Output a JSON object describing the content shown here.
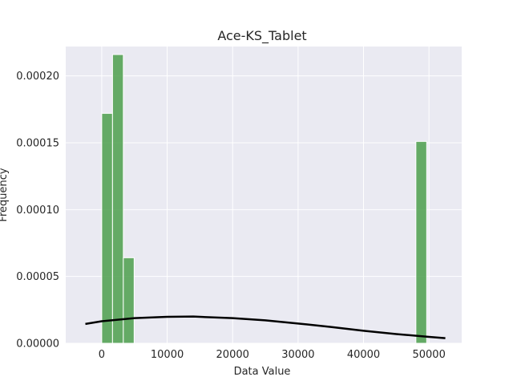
{
  "chart_data": {
    "type": "bar",
    "title": "Ace-KS_Tablet",
    "xlabel": "Data Value",
    "ylabel": "Frequency",
    "xlim": [
      -5500,
      55000
    ],
    "ylim": [
      0,
      0.000222
    ],
    "x_ticks": [
      0,
      10000,
      20000,
      30000,
      40000,
      50000
    ],
    "x_tick_labels": [
      "0",
      "10000",
      "20000",
      "30000",
      "40000",
      "50000"
    ],
    "y_ticks": [
      0,
      5e-05,
      0.0001,
      0.00015,
      0.0002
    ],
    "y_tick_labels": [
      "0.00000",
      "0.00005",
      "0.00010",
      "0.00015",
      "0.00020"
    ],
    "grid": true,
    "bars": [
      {
        "x0": 0,
        "x1": 1650,
        "value": 0.000172
      },
      {
        "x0": 1650,
        "x1": 3300,
        "value": 0.000216
      },
      {
        "x0": 3300,
        "x1": 4950,
        "value": 6.4e-05
      },
      {
        "x0": 48000,
        "x1": 49650,
        "value": 0.000151
      }
    ],
    "density_curve": {
      "x": [
        -2500,
        0,
        5000,
        10000,
        14000,
        20000,
        25000,
        30000,
        35000,
        40000,
        45000,
        50000,
        52500
      ],
      "y": [
        1.45e-05,
        1.65e-05,
        1.88e-05,
        1.98e-05,
        2e-05,
        1.88e-05,
        1.72e-05,
        1.48e-05,
        1.22e-05,
        9.4e-06,
        6.9e-06,
        4.8e-06,
        3.8e-06
      ]
    },
    "colors": {
      "bar": "#4c9f4c",
      "bar_edge": "#ffffff",
      "curve": "#000000",
      "plot_bg": "#eaeaf2",
      "grid": "#ffffff"
    }
  }
}
